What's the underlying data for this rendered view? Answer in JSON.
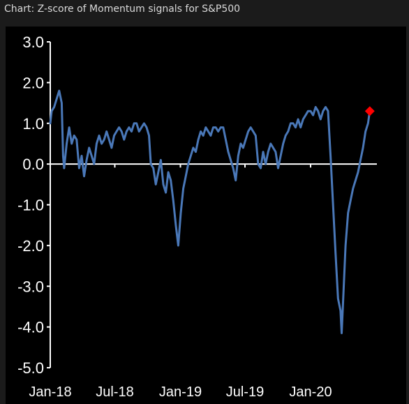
{
  "caption": "Chart: Z-score of Momentum signals for S&P500",
  "colors": {
    "background": "#1b1b1b",
    "plot_background": "#000000",
    "axis": "#ffffff",
    "series": "#4a78b8",
    "marker": "#ff0000",
    "caption_text": "#d9d9d9"
  },
  "chart_data": {
    "type": "line",
    "title": "",
    "xlabel": "",
    "ylabel": "",
    "ylim": [
      -5.0,
      3.0
    ],
    "yticks": [
      "3.0",
      "2.0",
      "1.0",
      "0.0",
      "-1.0",
      "-2.0",
      "-3.0",
      "-4.0",
      "-5.0"
    ],
    "ytick_values": [
      3,
      2,
      1,
      0,
      -1,
      -2,
      -3,
      -4,
      -5
    ],
    "xlim": [
      "2018-01-01",
      "2020-07-01"
    ],
    "xticks": [
      "Jan-18",
      "Jul-18",
      "Jan-19",
      "Jul-19",
      "Jan-20"
    ],
    "xtick_dates": [
      "2018-01-01",
      "2018-07-01",
      "2019-01-01",
      "2019-07-01",
      "2020-01-01"
    ],
    "grid": false,
    "series": [
      {
        "color": "#4a78b8",
        "points": [
          [
            "2018-01-01",
            1.0
          ],
          [
            "2018-01-05",
            1.3
          ],
          [
            "2018-01-12",
            1.4
          ],
          [
            "2018-01-19",
            1.6
          ],
          [
            "2018-01-26",
            1.8
          ],
          [
            "2018-02-02",
            1.5
          ],
          [
            "2018-02-06",
            0.2
          ],
          [
            "2018-02-09",
            -0.1
          ],
          [
            "2018-02-16",
            0.5
          ],
          [
            "2018-02-23",
            0.9
          ],
          [
            "2018-03-02",
            0.5
          ],
          [
            "2018-03-09",
            0.7
          ],
          [
            "2018-03-16",
            0.6
          ],
          [
            "2018-03-23",
            -0.1
          ],
          [
            "2018-03-30",
            0.2
          ],
          [
            "2018-04-06",
            -0.3
          ],
          [
            "2018-04-13",
            0.1
          ],
          [
            "2018-04-20",
            0.4
          ],
          [
            "2018-04-27",
            0.2
          ],
          [
            "2018-05-04",
            0.0
          ],
          [
            "2018-05-11",
            0.5
          ],
          [
            "2018-05-18",
            0.7
          ],
          [
            "2018-05-25",
            0.5
          ],
          [
            "2018-06-01",
            0.6
          ],
          [
            "2018-06-08",
            0.8
          ],
          [
            "2018-06-15",
            0.6
          ],
          [
            "2018-06-22",
            0.4
          ],
          [
            "2018-06-29",
            0.7
          ],
          [
            "2018-07-06",
            0.8
          ],
          [
            "2018-07-13",
            0.9
          ],
          [
            "2018-07-20",
            0.8
          ],
          [
            "2018-07-27",
            0.6
          ],
          [
            "2018-08-03",
            0.8
          ],
          [
            "2018-08-10",
            0.9
          ],
          [
            "2018-08-17",
            0.8
          ],
          [
            "2018-08-24",
            1.0
          ],
          [
            "2018-08-31",
            1.0
          ],
          [
            "2018-09-07",
            0.8
          ],
          [
            "2018-09-14",
            0.9
          ],
          [
            "2018-09-21",
            1.0
          ],
          [
            "2018-09-28",
            0.9
          ],
          [
            "2018-10-05",
            0.7
          ],
          [
            "2018-10-10",
            0.0
          ],
          [
            "2018-10-17",
            -0.1
          ],
          [
            "2018-10-24",
            -0.5
          ],
          [
            "2018-10-31",
            -0.2
          ],
          [
            "2018-11-07",
            0.1
          ],
          [
            "2018-11-14",
            -0.5
          ],
          [
            "2018-11-21",
            -0.7
          ],
          [
            "2018-11-28",
            -0.2
          ],
          [
            "2018-12-05",
            -0.4
          ],
          [
            "2018-12-12",
            -0.9
          ],
          [
            "2018-12-19",
            -1.5
          ],
          [
            "2018-12-26",
            -2.0
          ],
          [
            "2019-01-02",
            -1.2
          ],
          [
            "2019-01-09",
            -0.6
          ],
          [
            "2019-01-16",
            -0.3
          ],
          [
            "2019-01-23",
            0.0
          ],
          [
            "2019-01-30",
            0.2
          ],
          [
            "2019-02-06",
            0.4
          ],
          [
            "2019-02-13",
            0.3
          ],
          [
            "2019-02-20",
            0.6
          ],
          [
            "2019-02-27",
            0.8
          ],
          [
            "2019-03-06",
            0.7
          ],
          [
            "2019-03-13",
            0.9
          ],
          [
            "2019-03-20",
            0.8
          ],
          [
            "2019-03-27",
            0.7
          ],
          [
            "2019-04-03",
            0.9
          ],
          [
            "2019-04-10",
            0.9
          ],
          [
            "2019-04-17",
            0.8
          ],
          [
            "2019-04-24",
            0.9
          ],
          [
            "2019-05-01",
            0.9
          ],
          [
            "2019-05-08",
            0.6
          ],
          [
            "2019-05-15",
            0.3
          ],
          [
            "2019-05-22",
            0.1
          ],
          [
            "2019-05-29",
            -0.1
          ],
          [
            "2019-06-05",
            -0.4
          ],
          [
            "2019-06-12",
            0.2
          ],
          [
            "2019-06-19",
            0.5
          ],
          [
            "2019-06-26",
            0.4
          ],
          [
            "2019-07-03",
            0.6
          ],
          [
            "2019-07-10",
            0.8
          ],
          [
            "2019-07-17",
            0.9
          ],
          [
            "2019-07-24",
            0.8
          ],
          [
            "2019-07-31",
            0.7
          ],
          [
            "2019-08-07",
            0.0
          ],
          [
            "2019-08-14",
            -0.1
          ],
          [
            "2019-08-21",
            0.3
          ],
          [
            "2019-08-28",
            0.0
          ],
          [
            "2019-09-04",
            0.3
          ],
          [
            "2019-09-11",
            0.5
          ],
          [
            "2019-09-18",
            0.4
          ],
          [
            "2019-09-25",
            0.3
          ],
          [
            "2019-10-02",
            -0.1
          ],
          [
            "2019-10-09",
            0.2
          ],
          [
            "2019-10-16",
            0.5
          ],
          [
            "2019-10-23",
            0.7
          ],
          [
            "2019-10-30",
            0.8
          ],
          [
            "2019-11-06",
            1.0
          ],
          [
            "2019-11-13",
            1.0
          ],
          [
            "2019-11-20",
            0.9
          ],
          [
            "2019-11-27",
            1.1
          ],
          [
            "2019-12-04",
            0.9
          ],
          [
            "2019-12-11",
            1.1
          ],
          [
            "2019-12-18",
            1.2
          ],
          [
            "2019-12-25",
            1.3
          ],
          [
            "2020-01-01",
            1.3
          ],
          [
            "2020-01-08",
            1.2
          ],
          [
            "2020-01-15",
            1.4
          ],
          [
            "2020-01-22",
            1.3
          ],
          [
            "2020-01-29",
            1.1
          ],
          [
            "2020-02-05",
            1.3
          ],
          [
            "2020-02-12",
            1.4
          ],
          [
            "2020-02-19",
            1.3
          ],
          [
            "2020-02-26",
            0.2
          ],
          [
            "2020-03-04",
            -1.0
          ],
          [
            "2020-03-11",
            -2.2
          ],
          [
            "2020-03-18",
            -3.3
          ],
          [
            "2020-03-25",
            -3.6
          ],
          [
            "2020-03-28",
            -4.15
          ],
          [
            "2020-04-01",
            -3.4
          ],
          [
            "2020-04-08",
            -2.0
          ],
          [
            "2020-04-15",
            -1.2
          ],
          [
            "2020-04-22",
            -0.9
          ],
          [
            "2020-04-29",
            -0.6
          ],
          [
            "2020-05-06",
            -0.4
          ],
          [
            "2020-05-13",
            -0.2
          ],
          [
            "2020-05-20",
            0.1
          ],
          [
            "2020-05-27",
            0.4
          ],
          [
            "2020-06-03",
            0.8
          ],
          [
            "2020-06-10",
            1.0
          ],
          [
            "2020-06-15",
            1.3
          ]
        ]
      }
    ],
    "annotations": [
      {
        "type": "marker",
        "shape": "diamond",
        "date": "2020-06-15",
        "y": 1.3,
        "color": "#ff0000"
      }
    ]
  }
}
